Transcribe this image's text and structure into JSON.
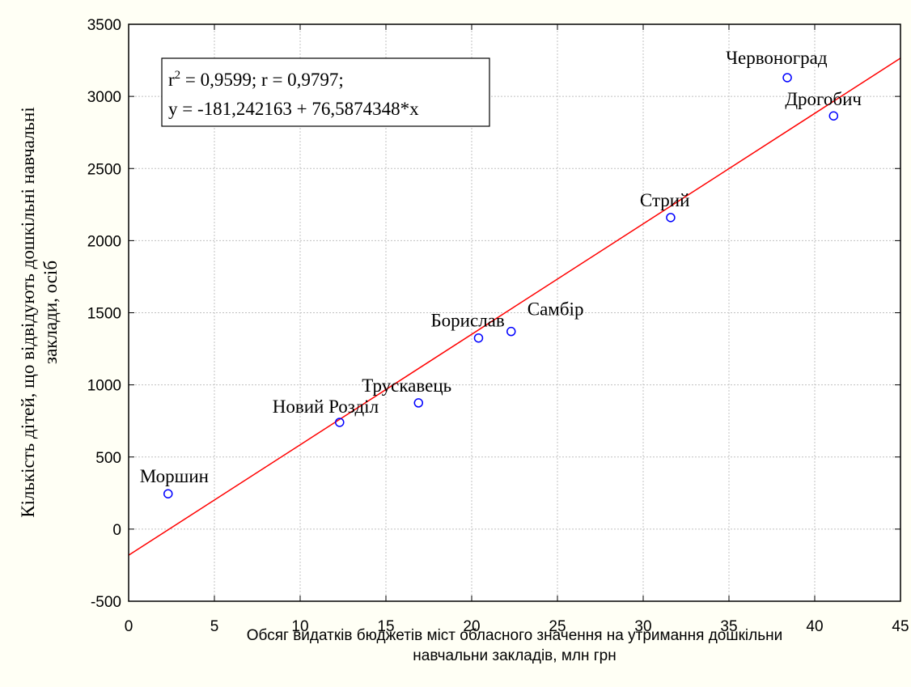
{
  "chart_data": {
    "type": "scatter",
    "title": "",
    "xlabel_lines": [
      "Обсяг видатків бюджетів міст обласного значення на утримання дошкільни",
      "навчальни закладів, млн грн"
    ],
    "ylabel_lines": [
      "Кількість дітей, що відвідують дошкільні навчальні",
      "заклади, осіб"
    ],
    "xlim": [
      0,
      45
    ],
    "ylim": [
      -500,
      3500
    ],
    "x_ticks": [
      0,
      5,
      10,
      15,
      20,
      25,
      30,
      35,
      40,
      45
    ],
    "y_ticks": [
      -500,
      0,
      500,
      1000,
      1500,
      2000,
      2500,
      3000,
      3500
    ],
    "grid": true,
    "points": [
      {
        "label": "Моршин",
        "x": 2.3,
        "y": 245
      },
      {
        "label": "Новий Розділ",
        "x": 12.3,
        "y": 740
      },
      {
        "label": "Трускавець",
        "x": 16.9,
        "y": 875
      },
      {
        "label": "Борислав",
        "x": 20.4,
        "y": 1325
      },
      {
        "label": "Самбір",
        "x": 22.3,
        "y": 1370
      },
      {
        "label": "Стрий",
        "x": 31.6,
        "y": 2160
      },
      {
        "label": "Червоноград",
        "x": 38.4,
        "y": 3130
      },
      {
        "label": "Дрогобич",
        "x": 41.1,
        "y": 2865
      }
    ],
    "regression": {
      "intercept": -181.242163,
      "slope": 76.5874348
    },
    "stats_box": {
      "r2_prefix": "r",
      "r2_sup": "2",
      "r2_rest": " = 0,9599;  r = 0,9797;",
      "equation": "y = -181,242163 + 76,5874348*x"
    },
    "colors": {
      "background": "#fffff5",
      "plot_bg": "#ffffff",
      "point": "#0000ff",
      "fit_line": "#ff0000",
      "grid": "#c0c0c0"
    }
  }
}
